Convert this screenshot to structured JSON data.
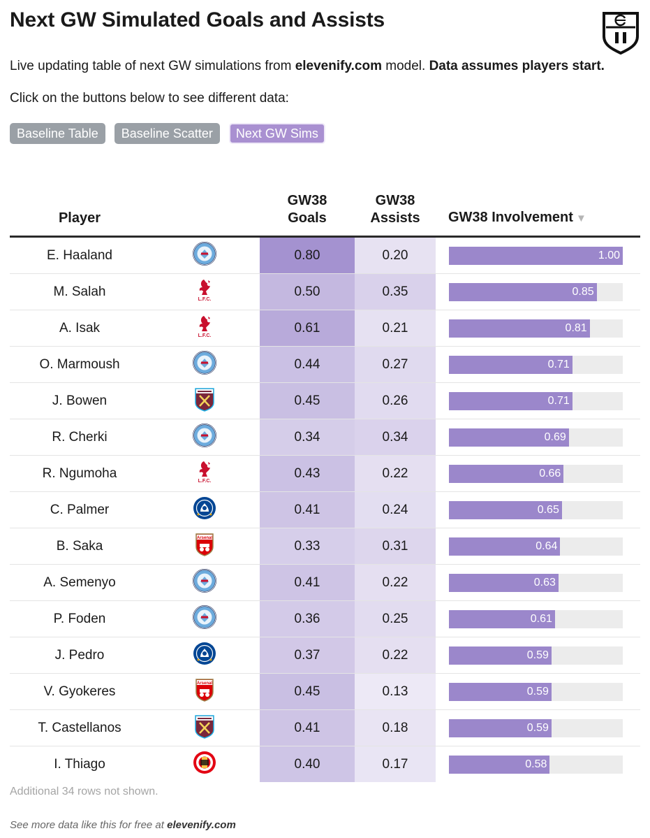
{
  "title": "Next GW Simulated Goals and Assists",
  "subtitle": {
    "prefix": "Live updating table of next GW simulations from ",
    "site": "elevenify.com",
    "middle": " model. ",
    "emphasis": "Data assumes players start."
  },
  "instruction": "Click on the buttons below to see different data:",
  "buttons": [
    {
      "label": "Baseline Table",
      "active": false
    },
    {
      "label": "Baseline Scatter",
      "active": false
    },
    {
      "label": "Next GW Sims",
      "active": true
    }
  ],
  "columns": {
    "player": "Player",
    "goals_line1": "GW38",
    "goals_line2": "Goals",
    "assists_line1": "GW38",
    "assists_line2": "Assists",
    "involvement": "GW38 Involvement"
  },
  "rows": [
    {
      "player": "E. Haaland",
      "team_icon": "man-city-crest-icon",
      "goals": "0.80",
      "assists": "0.20",
      "involvement": "1.00"
    },
    {
      "player": "M. Salah",
      "team_icon": "liverpool-crest-icon",
      "goals": "0.50",
      "assists": "0.35",
      "involvement": "0.85"
    },
    {
      "player": "A. Isak",
      "team_icon": "liverpool-crest-icon",
      "goals": "0.61",
      "assists": "0.21",
      "involvement": "0.81"
    },
    {
      "player": "O. Marmoush",
      "team_icon": "man-city-crest-icon",
      "goals": "0.44",
      "assists": "0.27",
      "involvement": "0.71"
    },
    {
      "player": "J. Bowen",
      "team_icon": "west-ham-crest-icon",
      "goals": "0.45",
      "assists": "0.26",
      "involvement": "0.71"
    },
    {
      "player": "R. Cherki",
      "team_icon": "man-city-crest-icon",
      "goals": "0.34",
      "assists": "0.34",
      "involvement": "0.69"
    },
    {
      "player": "R. Ngumoha",
      "team_icon": "liverpool-crest-icon",
      "goals": "0.43",
      "assists": "0.22",
      "involvement": "0.66"
    },
    {
      "player": "C. Palmer",
      "team_icon": "chelsea-crest-icon",
      "goals": "0.41",
      "assists": "0.24",
      "involvement": "0.65"
    },
    {
      "player": "B. Saka",
      "team_icon": "arsenal-crest-icon",
      "goals": "0.33",
      "assists": "0.31",
      "involvement": "0.64"
    },
    {
      "player": "A. Semenyo",
      "team_icon": "man-city-crest-icon",
      "goals": "0.41",
      "assists": "0.22",
      "involvement": "0.63"
    },
    {
      "player": "P. Foden",
      "team_icon": "man-city-crest-icon",
      "goals": "0.36",
      "assists": "0.25",
      "involvement": "0.61"
    },
    {
      "player": "J. Pedro",
      "team_icon": "chelsea-crest-icon",
      "goals": "0.37",
      "assists": "0.22",
      "involvement": "0.59"
    },
    {
      "player": "V. Gyokeres",
      "team_icon": "arsenal-crest-icon",
      "goals": "0.45",
      "assists": "0.13",
      "involvement": "0.59"
    },
    {
      "player": "T. Castellanos",
      "team_icon": "west-ham-crest-icon",
      "goals": "0.41",
      "assists": "0.18",
      "involvement": "0.59"
    },
    {
      "player": "I. Thiago",
      "team_icon": "brentford-crest-icon",
      "goals": "0.40",
      "assists": "0.17",
      "involvement": "0.58"
    }
  ],
  "footnote": "Additional 34 rows not shown.",
  "credit": {
    "prefix": "See more data like this for free at ",
    "site": "elevenify.com"
  },
  "logo_icon": "elevenify-shield-icon",
  "sort_icon": "sort-descending-icon",
  "colors": {
    "bar_fill": "#9b87cb",
    "bar_track": "#ececec",
    "heat_base": "#9b87cb",
    "button_inactive": "#9aa0a6",
    "button_active": "#a990d1"
  }
}
